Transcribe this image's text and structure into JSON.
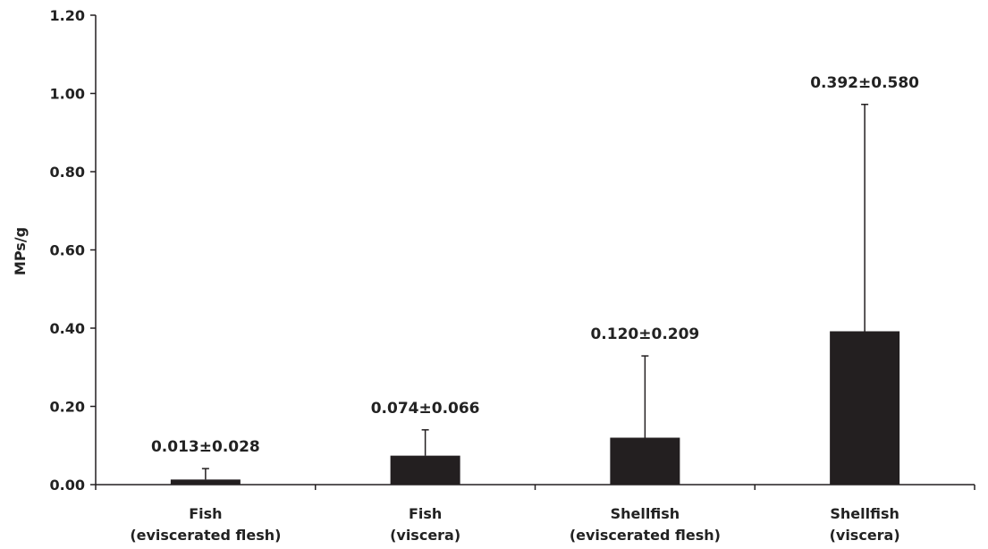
{
  "chart_data": {
    "type": "bar",
    "title": "",
    "xlabel": "",
    "ylabel": "MPs/g",
    "ylim": [
      0,
      1.2
    ],
    "y_ticks": [
      "0.00",
      "0.20",
      "0.40",
      "0.60",
      "0.80",
      "1.00",
      "1.20"
    ],
    "grid": false,
    "legend": "none",
    "categories": [
      [
        "Fish",
        "(eviscerated flesh)"
      ],
      [
        "Fish",
        "(viscera)"
      ],
      [
        "Shellfish",
        "(eviscerated flesh)"
      ],
      [
        "Shellfish",
        "(viscera)"
      ]
    ],
    "values": [
      0.013,
      0.074,
      0.12,
      0.392
    ],
    "errors": [
      0.028,
      0.066,
      0.209,
      0.58
    ],
    "data_labels": [
      "0.013±0.028",
      "0.074±0.066",
      "0.120±0.209",
      "0.392±0.580"
    ],
    "bar_color": "#231f20",
    "axis_color": "#231f20"
  }
}
